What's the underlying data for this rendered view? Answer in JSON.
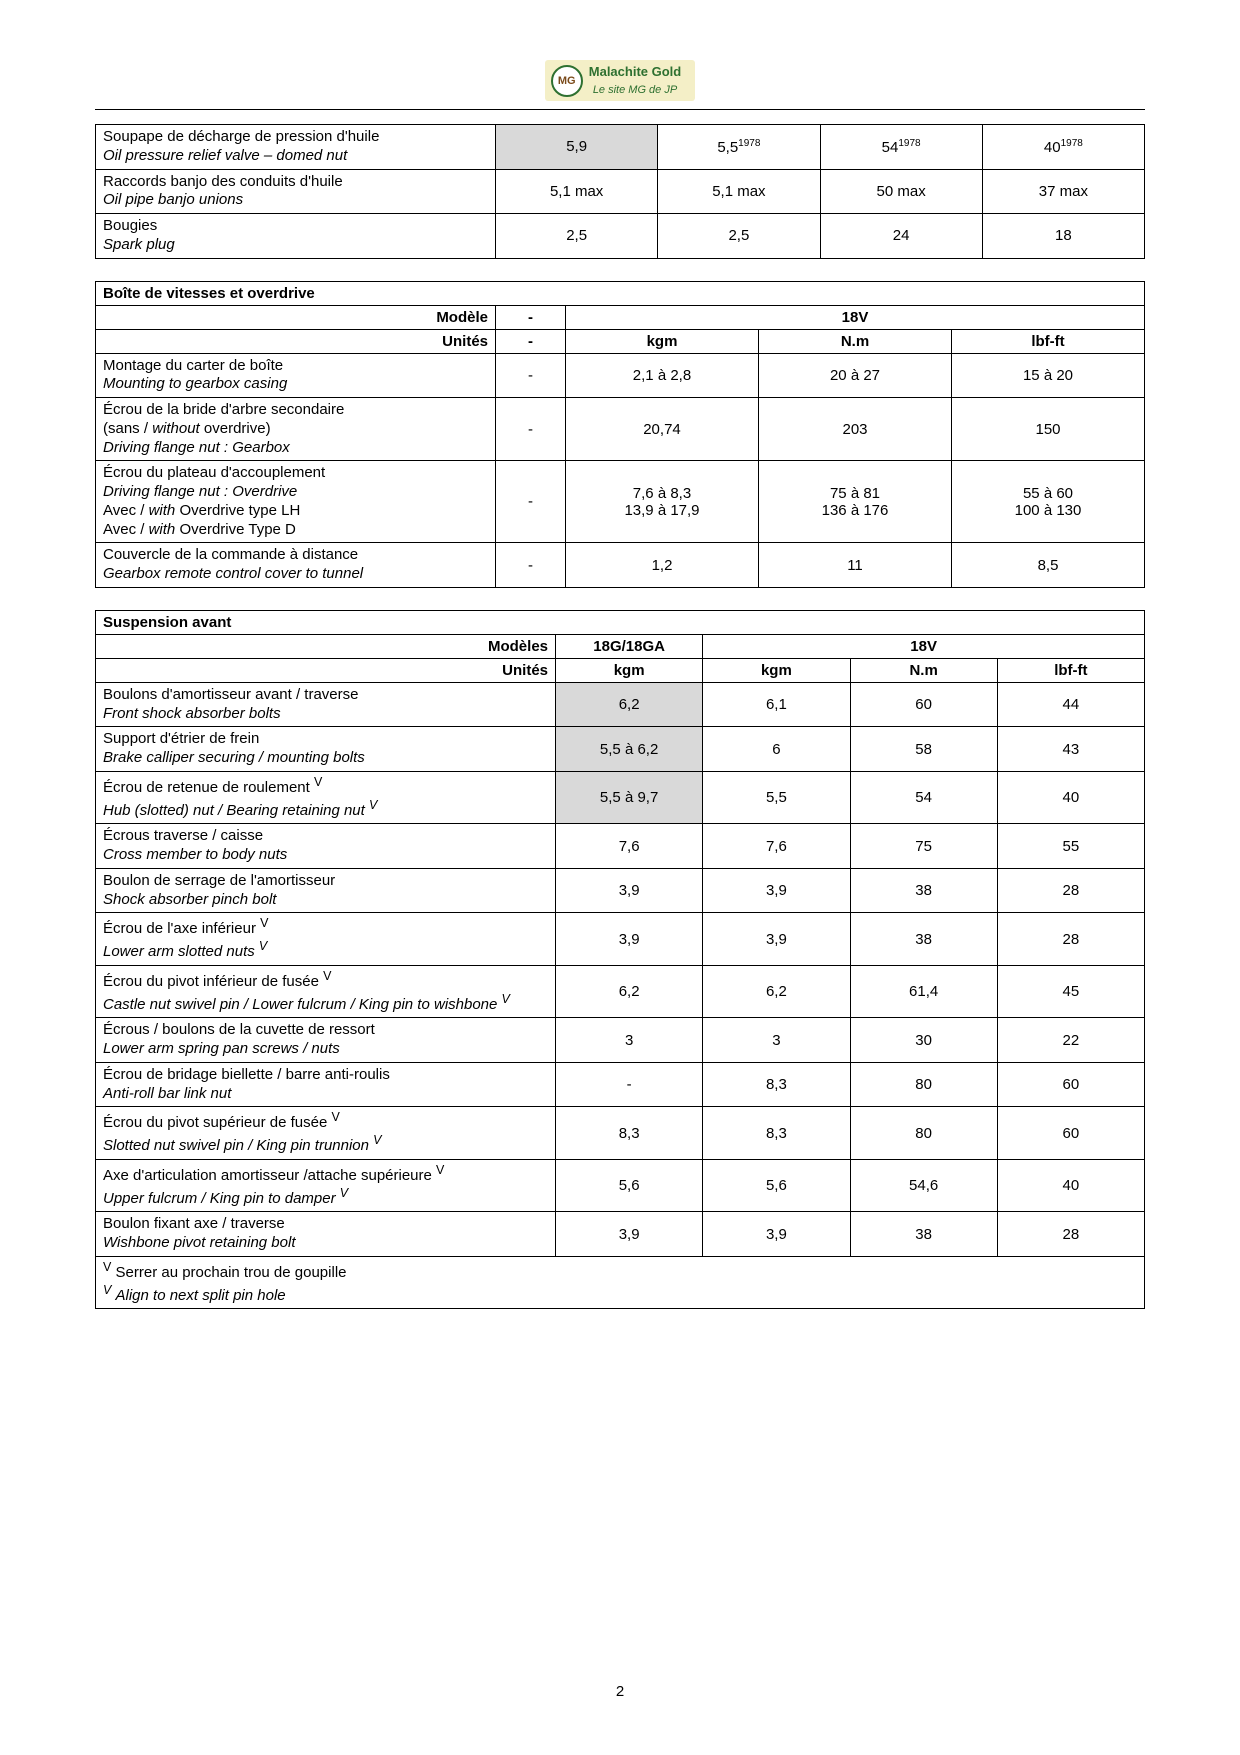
{
  "header": {
    "logo_initials": "MG",
    "line1": "Malachite Gold",
    "line2": "Le site MG de JP"
  },
  "colors": {
    "shaded_bg": "#d9d9d9",
    "border": "#000000",
    "logo_bg": "#f4efc7",
    "logo_green": "#2e7030"
  },
  "table1": {
    "rows": [
      {
        "fr": "Soupape de décharge de pression d'huile",
        "en": "Oil pressure relief valve – domed nut",
        "c1": "5,9",
        "c1_shaded": true,
        "c2": "5,5",
        "c2_sup": "1978",
        "c3": "54",
        "c3_sup": "1978",
        "c4": "40",
        "c4_sup": "1978"
      },
      {
        "fr": "Raccords banjo des conduits d'huile",
        "en": "Oil pipe banjo unions",
        "c1": "5,1 max",
        "c2": "5,1 max",
        "c3": "50 max",
        "c4": "37 max"
      },
      {
        "fr": "Bougies",
        "en": "Spark plug",
        "c1": "2,5",
        "c2": "2,5",
        "c3": "24",
        "c4": "18"
      }
    ]
  },
  "table2": {
    "title": "Boîte de vitesses et overdrive",
    "header_model": "Modèle",
    "header_units": "Unités",
    "dash": "-",
    "model_18v": "18V",
    "units": {
      "kgm": "kgm",
      "nm": "N.m",
      "lbfft": "lbf-ft"
    },
    "rows": [
      {
        "fr": "Montage du carter de boîte",
        "en": "Mounting to gearbox casing",
        "c1": "-",
        "c2": "2,1 à 2,8",
        "c3": "20 à 27",
        "c4": "15 à 20"
      },
      {
        "lines": [
          "Écrou de la bride d'arbre secondaire",
          "(sans / <i>without</i> overdrive)",
          "<i>Driving flange nut : Gearbox</i>"
        ],
        "c1": "-",
        "c2": "20,74",
        "c3": "203",
        "c4": "150"
      },
      {
        "lines": [
          "Écrou du plateau d'accouplement",
          "<i>Driving flange nut : Overdrive</i>",
          "Avec / <i>with</i> Overdrive type LH",
          "Avec / <i>with</i> Overdrive Type D"
        ],
        "c1": "-",
        "c2_lines": [
          "7,6 à 8,3",
          "13,9 à 17,9"
        ],
        "c3_lines": [
          "75 à 81",
          "136 à 176"
        ],
        "c4_lines": [
          "55 à 60",
          "100 à 130"
        ]
      },
      {
        "fr": "Couvercle de la commande à distance",
        "en": "Gearbox remote control cover to tunnel",
        "c1": "-",
        "c2": "1,2",
        "c3": "11",
        "c4": "8,5"
      }
    ]
  },
  "table3": {
    "title": "Suspension avant",
    "header_models": "Modèles",
    "header_units": "Unités",
    "model_a": "18G/18GA",
    "model_b": "18V",
    "units": {
      "kgm": "kgm",
      "nm": "N.m",
      "lbfft": "lbf-ft"
    },
    "rows": [
      {
        "fr": "Boulons d'amortisseur avant / traverse",
        "en": "Front shock absorber bolts",
        "c1": "6,2",
        "c1_shaded": true,
        "c2": "6,1",
        "c3": "60",
        "c4": "44"
      },
      {
        "fr": "Support d'étrier de frein",
        "en": "Brake calliper securing / mounting bolts",
        "c1": "5,5 à 6,2",
        "c1_shaded": true,
        "c2": "6",
        "c3": "58",
        "c4": "43"
      },
      {
        "fr_html": "Écrou de retenue de roulement <sup>V</sup>",
        "en_html": "Hub (slotted) nut / Bearing retaining nut  <sup><i>V</i></sup>",
        "c1": "5,5 à 9,7",
        "c1_shaded": true,
        "c2": "5,5",
        "c3": "54",
        "c4": "40"
      },
      {
        "fr": "Écrous traverse / caisse",
        "en": "Cross member to body nuts",
        "c1": "7,6",
        "c2": "7,6",
        "c3": "75",
        "c4": "55"
      },
      {
        "fr": "Boulon de serrage de l'amortisseur",
        "en": "Shock absorber pinch bolt",
        "c1": "3,9",
        "c2": "3,9",
        "c3": "38",
        "c4": "28"
      },
      {
        "fr_html": "Écrou de l'axe inférieur <sup>V</sup>",
        "en_html": "Lower arm slotted nuts <sup><i>V</i></sup>",
        "c1": "3,9",
        "c2": "3,9",
        "c3": "38",
        "c4": "28"
      },
      {
        "lines_html": [
          "Écrou du pivot inférieur de fusée <sup>V</sup>",
          "<i>Castle nut swivel pin / Lower fulcrum / King pin to wishbone</i> <sup><i>V</i></sup>"
        ],
        "c1": "6,2",
        "c2": "6,2",
        "c3": "61,4",
        "c4": "45"
      },
      {
        "fr": "Écrous / boulons de la cuvette de ressort",
        "en": "Lower arm spring pan screws / nuts",
        "c1": "3",
        "c2": "3",
        "c3": "30",
        "c4": "22"
      },
      {
        "fr": "Écrou de bridage biellette / barre anti-roulis",
        "en": "Anti-roll bar link nut",
        "c1": "-",
        "c2": "8,3",
        "c3": "80",
        "c4": "60"
      },
      {
        "fr_html": "Écrou du pivot supérieur de fusée <sup>V</sup>",
        "en_html": "Slotted nut swivel pin / King pin trunnion <sup><i>V</i></sup>",
        "c1": "8,3",
        "c2": "8,3",
        "c3": "80",
        "c4": "60"
      },
      {
        "lines_html": [
          "Axe d'articulation amortisseur /attache supérieure <sup>V</sup>",
          "<i>Upper fulcrum / King pin to damper</i> <sup><i>V</i></sup>"
        ],
        "c1": "5,6",
        "c2": "5,6",
        "c3": "54,6",
        "c4": "40"
      },
      {
        "fr": "Boulon fixant axe / traverse",
        "en": "Wishbone pivot retaining bolt",
        "c1": "3,9",
        "c2": "3,9",
        "c3": "38",
        "c4": "28"
      }
    ],
    "footnote_fr": "Serrer au prochain trou de goupille",
    "footnote_en": "Align to next split pin hole"
  },
  "page_number": "2"
}
